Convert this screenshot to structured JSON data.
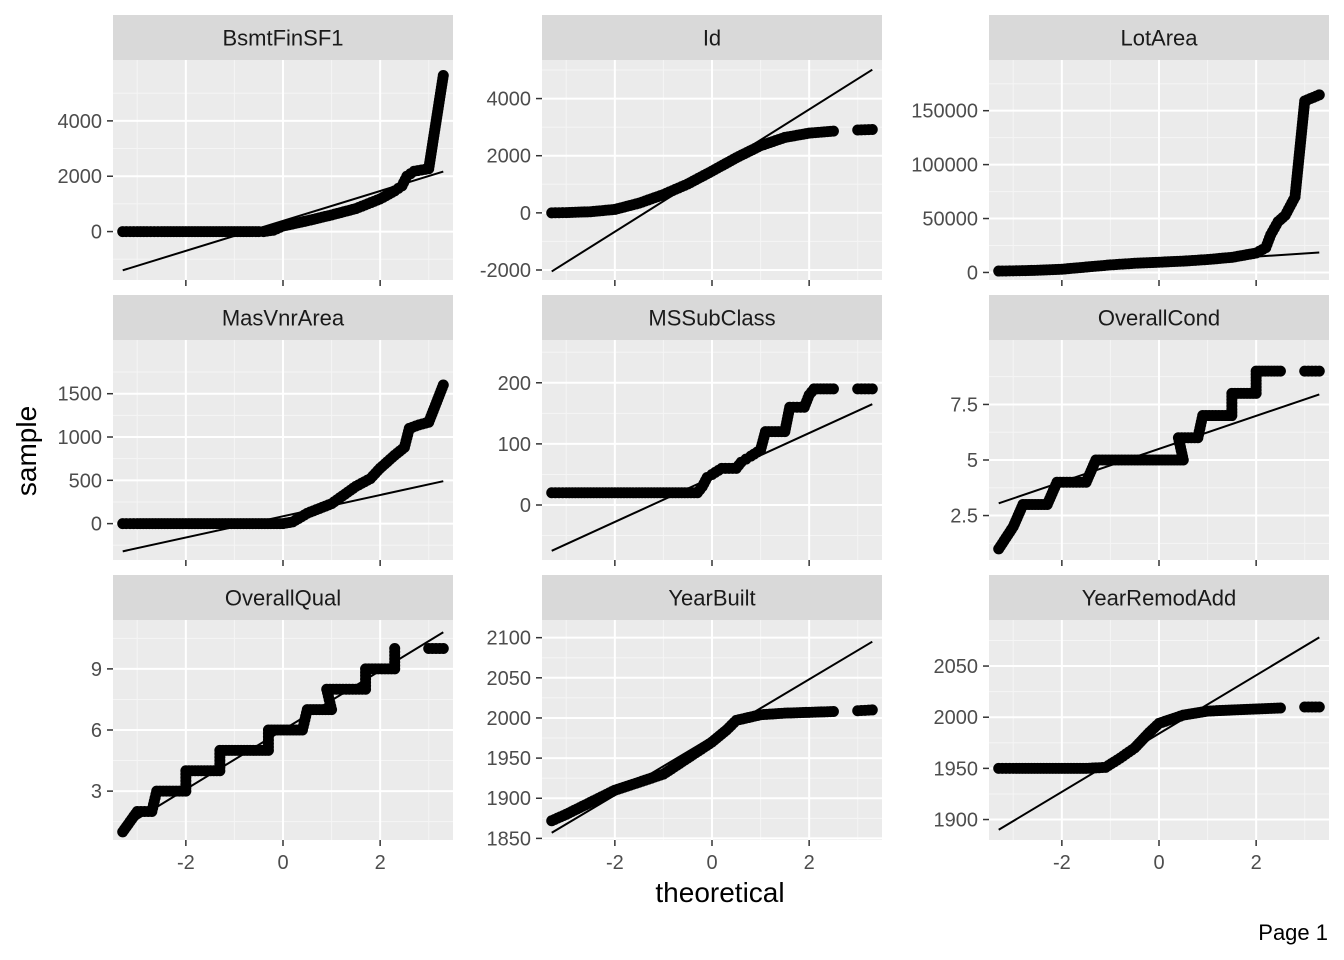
{
  "page": {
    "label": "Page 1"
  },
  "axes": {
    "xlabel": "theoretical",
    "ylabel": "sample"
  },
  "chart_data": {
    "type": "scatter",
    "subtype": "qq-plot facets",
    "xlabel": "theoretical",
    "ylabel": "sample",
    "xlim": [
      -3.5,
      3.5
    ],
    "x_ticks": [
      -2,
      0,
      2
    ],
    "grid": true,
    "panels": [
      {
        "name": "BsmtFinSF1",
        "ylim": [
          -1750,
          6200
        ],
        "y_ticks": [
          0,
          2000,
          4000
        ],
        "line": [
          [
            -3.3,
            -1400
          ],
          [
            3.3,
            2170
          ]
        ],
        "points": [
          [
            -3.3,
            0
          ],
          [
            -3.0,
            0
          ],
          [
            -2.8,
            0
          ],
          [
            -2.5,
            0
          ],
          [
            -2.0,
            0
          ],
          [
            -1.5,
            0
          ],
          [
            -1.0,
            0
          ],
          [
            -0.5,
            0
          ],
          [
            -0.4,
            0
          ],
          [
            -0.2,
            50
          ],
          [
            0,
            200
          ],
          [
            0.5,
            390
          ],
          [
            1.0,
            600
          ],
          [
            1.5,
            830
          ],
          [
            2.0,
            1180
          ],
          [
            2.3,
            1470
          ],
          [
            2.45,
            1650
          ],
          [
            2.55,
            2000
          ],
          [
            2.7,
            2180
          ],
          [
            3.0,
            2270
          ],
          [
            3.3,
            5640
          ]
        ]
      },
      {
        "name": "Id",
        "ylim": [
          -2350,
          5350
        ],
        "y_ticks": [
          -2000,
          0,
          2000,
          4000
        ],
        "line": [
          [
            -3.3,
            -2050
          ],
          [
            3.3,
            5010
          ]
        ],
        "points": [
          [
            -3.3,
            0
          ],
          [
            -3.0,
            10
          ],
          [
            -2.5,
            40
          ],
          [
            -2.0,
            120
          ],
          [
            -1.5,
            340
          ],
          [
            -1.0,
            640
          ],
          [
            -0.5,
            1010
          ],
          [
            0,
            1460
          ],
          [
            0.5,
            1930
          ],
          [
            1.0,
            2350
          ],
          [
            1.5,
            2640
          ],
          [
            2.0,
            2790
          ],
          [
            2.5,
            2860
          ],
          [
            3.0,
            2900
          ],
          [
            3.3,
            2919
          ]
        ]
      },
      {
        "name": "LotArea",
        "ylim": [
          -7000,
          197000
        ],
        "y_ticks": [
          0,
          50000,
          100000,
          150000
        ],
        "line": [
          [
            -3.3,
            -1000
          ],
          [
            3.3,
            18500
          ]
        ],
        "points": [
          [
            -3.3,
            1300
          ],
          [
            -3.0,
            1500
          ],
          [
            -2.5,
            2000
          ],
          [
            -2.0,
            3000
          ],
          [
            -1.5,
            5000
          ],
          [
            -1.0,
            7000
          ],
          [
            -0.5,
            8500
          ],
          [
            0,
            9500
          ],
          [
            0.5,
            10500
          ],
          [
            1.0,
            12000
          ],
          [
            1.5,
            14000
          ],
          [
            2.0,
            18000
          ],
          [
            2.2,
            23000
          ],
          [
            2.3,
            35000
          ],
          [
            2.45,
            47000
          ],
          [
            2.6,
            53000
          ],
          [
            2.8,
            70000
          ],
          [
            3.0,
            159000
          ],
          [
            3.3,
            164660
          ]
        ]
      },
      {
        "name": "MasVnrArea",
        "ylim": [
          -420,
          2120
        ],
        "y_ticks": [
          0,
          500,
          1000,
          1500
        ],
        "line": [
          [
            -3.3,
            -320
          ],
          [
            3.3,
            490
          ]
        ],
        "points": [
          [
            -3.3,
            0
          ],
          [
            -3.0,
            0
          ],
          [
            -2.5,
            0
          ],
          [
            -2.0,
            0
          ],
          [
            -1.5,
            0
          ],
          [
            -1.0,
            0
          ],
          [
            -0.5,
            0
          ],
          [
            0,
            0
          ],
          [
            0.2,
            20
          ],
          [
            0.5,
            120
          ],
          [
            1.0,
            230
          ],
          [
            1.5,
            430
          ],
          [
            1.8,
            520
          ],
          [
            2.0,
            640
          ],
          [
            2.3,
            790
          ],
          [
            2.5,
            880
          ],
          [
            2.6,
            1100
          ],
          [
            2.8,
            1140
          ],
          [
            3.0,
            1170
          ],
          [
            3.3,
            1600
          ]
        ]
      },
      {
        "name": "MSSubClass",
        "ylim": [
          -90,
          270
        ],
        "y_ticks": [
          0,
          100,
          200
        ],
        "line": [
          [
            -3.3,
            -75
          ],
          [
            3.3,
            165
          ]
        ],
        "points": [
          [
            -3.3,
            20
          ],
          [
            -3.0,
            20
          ],
          [
            -2.5,
            20
          ],
          [
            -2.0,
            20
          ],
          [
            -1.5,
            20
          ],
          [
            -1.0,
            20
          ],
          [
            -0.5,
            20
          ],
          [
            -0.3,
            20
          ],
          [
            -0.2,
            30
          ],
          [
            -0.1,
            45
          ],
          [
            0,
            50
          ],
          [
            0.2,
            60
          ],
          [
            0.5,
            60
          ],
          [
            0.6,
            70
          ],
          [
            0.7,
            75
          ],
          [
            0.8,
            80
          ],
          [
            1.0,
            90
          ],
          [
            1.1,
            120
          ],
          [
            1.5,
            120
          ],
          [
            1.6,
            160
          ],
          [
            1.9,
            160
          ],
          [
            2.0,
            180
          ],
          [
            2.1,
            190
          ],
          [
            2.5,
            190
          ],
          [
            3.0,
            190
          ],
          [
            3.3,
            190
          ]
        ]
      },
      {
        "name": "OverallCond",
        "ylim": [
          0.5,
          10.4
        ],
        "y_ticks": [
          2.5,
          5.0,
          7.5
        ],
        "line": [
          [
            -3.3,
            3.05
          ],
          [
            3.3,
            7.95
          ]
        ],
        "points": [
          [
            -3.3,
            1
          ],
          [
            -3.0,
            2
          ],
          [
            -2.8,
            3
          ],
          [
            -2.3,
            3
          ],
          [
            -2.1,
            4
          ],
          [
            -1.5,
            4
          ],
          [
            -1.3,
            5
          ],
          [
            -0.5,
            5
          ],
          [
            0,
            5
          ],
          [
            0.5,
            5
          ],
          [
            0.4,
            6
          ],
          [
            0.8,
            6
          ],
          [
            0.9,
            7
          ],
          [
            1.5,
            7
          ],
          [
            1.5,
            8
          ],
          [
            2.0,
            8
          ],
          [
            2.0,
            9
          ],
          [
            2.5,
            9
          ],
          [
            3.0,
            9
          ],
          [
            3.3,
            9
          ]
        ]
      },
      {
        "name": "OverallQual",
        "ylim": [
          0.6,
          11.4
        ],
        "y_ticks": [
          3,
          6,
          9
        ],
        "line": [
          [
            -3.3,
            1.2
          ],
          [
            3.3,
            10.8
          ]
        ],
        "points": [
          [
            -3.3,
            1
          ],
          [
            -3.0,
            2
          ],
          [
            -2.7,
            2
          ],
          [
            -2.6,
            3
          ],
          [
            -2.0,
            3
          ],
          [
            -2.0,
            4
          ],
          [
            -1.3,
            4
          ],
          [
            -1.3,
            5
          ],
          [
            -0.3,
            5
          ],
          [
            -0.3,
            6
          ],
          [
            0.4,
            6
          ],
          [
            0.5,
            7
          ],
          [
            1.0,
            7
          ],
          [
            0.9,
            8
          ],
          [
            1.7,
            8
          ],
          [
            1.7,
            9
          ],
          [
            2.3,
            9
          ],
          [
            2.3,
            10
          ],
          [
            3.0,
            10
          ],
          [
            3.3,
            10
          ]
        ]
      },
      {
        "name": "YearBuilt",
        "ylim": [
          1848,
          2122
        ],
        "y_ticks": [
          1850,
          1900,
          1950,
          2000,
          2050,
          2100
        ],
        "line": [
          [
            -3.3,
            1857
          ],
          [
            3.3,
            2095
          ]
        ],
        "points": [
          [
            -3.3,
            1872
          ],
          [
            -3.0,
            1880
          ],
          [
            -2.5,
            1895
          ],
          [
            -2.0,
            1910
          ],
          [
            -1.5,
            1920
          ],
          [
            -1.0,
            1930
          ],
          [
            -0.5,
            1950
          ],
          [
            0,
            1970
          ],
          [
            0.3,
            1985
          ],
          [
            0.5,
            1997
          ],
          [
            1.0,
            2004
          ],
          [
            1.5,
            2006
          ],
          [
            2.0,
            2007
          ],
          [
            2.5,
            2008
          ],
          [
            3.0,
            2009
          ],
          [
            3.3,
            2010
          ]
        ]
      },
      {
        "name": "YearRemodAdd",
        "ylim": [
          1880,
          2095
        ],
        "y_ticks": [
          1900,
          1950,
          2000,
          2050
        ],
        "line": [
          [
            -3.3,
            1890
          ],
          [
            3.3,
            2078
          ]
        ],
        "points": [
          [
            -3.3,
            1950
          ],
          [
            -3.0,
            1950
          ],
          [
            -2.5,
            1950
          ],
          [
            -2.0,
            1950
          ],
          [
            -1.5,
            1950
          ],
          [
            -1.1,
            1951
          ],
          [
            -0.8,
            1960
          ],
          [
            -0.5,
            1970
          ],
          [
            -0.2,
            1985
          ],
          [
            0,
            1994
          ],
          [
            0.5,
            2002
          ],
          [
            1.0,
            2006
          ],
          [
            1.5,
            2007
          ],
          [
            2.0,
            2008
          ],
          [
            2.5,
            2009
          ],
          [
            3.0,
            2010
          ],
          [
            3.3,
            2010
          ]
        ]
      }
    ]
  }
}
